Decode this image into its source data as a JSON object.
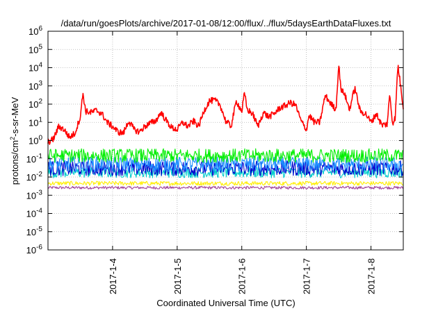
{
  "chart_data": {
    "type": "line",
    "title": "/data/run/goesPlots/archive/2017-01-08/12:00/flux/../flux/5daysEarthDataFluxes.txt",
    "xlabel": "Coordinated Universal Time (UTC)",
    "ylabel": {
      "pre": "protons/cm",
      "sup": "2",
      "post": "-s-sr-MeV"
    },
    "y_scale": "log",
    "ylim": [
      1e-06,
      1000000.0
    ],
    "xlim": [
      "2017-01-03 00:00",
      "2017-01-08 12:00"
    ],
    "grid": true,
    "legend": "none",
    "y_ticks": [
      {
        "value": 1e-06,
        "base": "10",
        "exp": "-6"
      },
      {
        "value": 1e-05,
        "base": "10",
        "exp": "-5"
      },
      {
        "value": 0.0001,
        "base": "10",
        "exp": "-4"
      },
      {
        "value": 0.001,
        "base": "10",
        "exp": "-3"
      },
      {
        "value": 0.01,
        "base": "10",
        "exp": "-2"
      },
      {
        "value": 0.1,
        "base": "10",
        "exp": "-1"
      },
      {
        "value": 1,
        "base": "10",
        "exp": "0"
      },
      {
        "value": 10,
        "base": "10",
        "exp": "1"
      },
      {
        "value": 100,
        "base": "10",
        "exp": "2"
      },
      {
        "value": 1000,
        "base": "10",
        "exp": "3"
      },
      {
        "value": 10000,
        "base": "10",
        "exp": "4"
      },
      {
        "value": 100000,
        "base": "10",
        "exp": "5"
      },
      {
        "value": 1000000,
        "base": "10",
        "exp": "6"
      }
    ],
    "x_ticks": [
      {
        "date": "2017-01-04 00:00",
        "label": "2017-1-4"
      },
      {
        "date": "2017-01-05 00:00",
        "label": "2017-1-5"
      },
      {
        "date": "2017-01-06 00:00",
        "label": "2017-1-6"
      },
      {
        "date": "2017-01-07 00:00",
        "label": "2017-1-7"
      },
      {
        "date": "2017-01-08 00:00",
        "label": "2017-1-8"
      }
    ],
    "series": [
      {
        "color": "#ff0000",
        "x": [
          "2017-01-03 00:00",
          "2017-01-03 02:00",
          "2017-01-03 04:00",
          "2017-01-03 06:00",
          "2017-01-03 08:00",
          "2017-01-03 10:00",
          "2017-01-03 12:00",
          "2017-01-03 13:00",
          "2017-01-03 14:00",
          "2017-01-03 16:00",
          "2017-01-03 18:00",
          "2017-01-03 20:00",
          "2017-01-03 22:00",
          "2017-01-04 00:00",
          "2017-01-04 02:00",
          "2017-01-04 04:00",
          "2017-01-04 06:00",
          "2017-01-04 08:00",
          "2017-01-04 10:00",
          "2017-01-04 12:00",
          "2017-01-04 14:00",
          "2017-01-04 16:00",
          "2017-01-04 18:00",
          "2017-01-04 20:00",
          "2017-01-04 22:00",
          "2017-01-05 00:00",
          "2017-01-05 02:00",
          "2017-01-05 04:00",
          "2017-01-05 06:00",
          "2017-01-05 08:00",
          "2017-01-05 10:00",
          "2017-01-05 12:00",
          "2017-01-05 14:00",
          "2017-01-05 16:00",
          "2017-01-05 18:00",
          "2017-01-05 20:00",
          "2017-01-05 22:00",
          "2017-01-06 00:00",
          "2017-01-06 01:00",
          "2017-01-06 02:00",
          "2017-01-06 04:00",
          "2017-01-06 06:00",
          "2017-01-06 08:00",
          "2017-01-06 10:00",
          "2017-01-06 12:00",
          "2017-01-06 14:00",
          "2017-01-06 16:00",
          "2017-01-06 18:00",
          "2017-01-06 20:00",
          "2017-01-06 22:00",
          "2017-01-07 00:00",
          "2017-01-07 01:00",
          "2017-01-07 03:00",
          "2017-01-07 05:00",
          "2017-01-07 07:00",
          "2017-01-07 09:00",
          "2017-01-07 11:00",
          "2017-01-07 12:00",
          "2017-01-07 13:00",
          "2017-01-07 14:00",
          "2017-01-07 16:00",
          "2017-01-07 18:00",
          "2017-01-07 20:00",
          "2017-01-07 22:00",
          "2017-01-08 00:00",
          "2017-01-08 02:00",
          "2017-01-08 04:00",
          "2017-01-08 06:00",
          "2017-01-08 07:00",
          "2017-01-08 08:00",
          "2017-01-08 09:00",
          "2017-01-08 10:00",
          "2017-01-08 12:00"
        ],
        "y": [
          0.8,
          1.2,
          6,
          4,
          1.5,
          2.5,
          20,
          400,
          40,
          35,
          45,
          30,
          10,
          6,
          3,
          2.5,
          12,
          4,
          3,
          6,
          9,
          12,
          35,
          12,
          5,
          4,
          10,
          6,
          12,
          6,
          45,
          150,
          160,
          90,
          12,
          6,
          150,
          40,
          400,
          50,
          30,
          6,
          35,
          20,
          30,
          60,
          80,
          120,
          90,
          12,
          4,
          25,
          10,
          10,
          300,
          110,
          50,
          15000,
          500,
          450,
          50,
          800,
          40,
          30,
          10,
          30,
          7,
          8,
          350,
          9,
          18,
          15000,
          70
        ]
      },
      {
        "color": "#00ee00",
        "base": 0.15,
        "jitter": 2.4
      },
      {
        "color": "#1e90ff",
        "base": 0.05,
        "jitter": 2.6
      },
      {
        "color": "#0000cd",
        "base": 0.03,
        "jitter": 2.6
      },
      {
        "color": "#00cccc",
        "base": 0.018,
        "jitter": 2.0
      },
      {
        "color": "#ffee00",
        "base": 0.0045,
        "jitter": 1.3
      },
      {
        "color": "#a0409a",
        "base": 0.0026,
        "jitter": 1.2
      }
    ]
  }
}
